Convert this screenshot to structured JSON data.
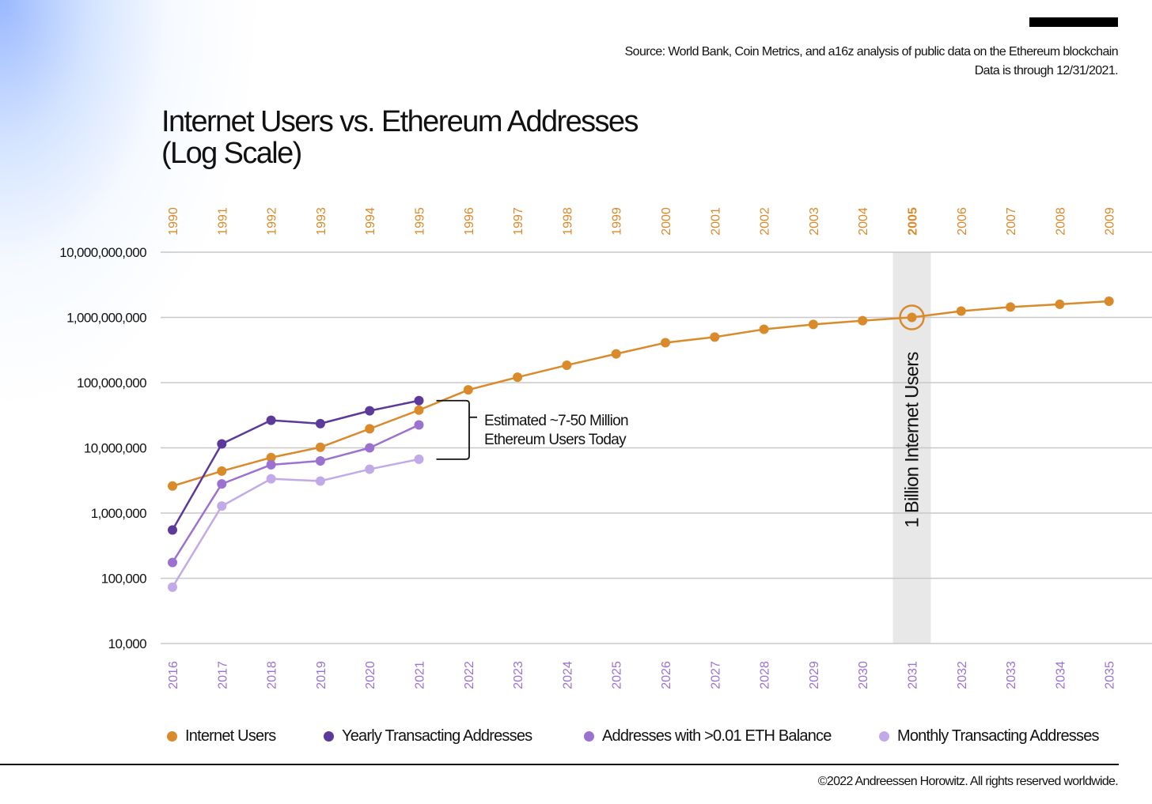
{
  "source": {
    "line1": "Source: World Bank, Coin Metrics, and a16z analysis of public data on the Ethereum blockchain",
    "line2": "Data is through 12/31/2021."
  },
  "title": {
    "line1": "Internet Users vs. Ethereum Addresses",
    "line2": "(Log Scale)"
  },
  "footer": {
    "copyright": "©2022 Andreessen Horowitz. All rights reserved worldwide."
  },
  "colors": {
    "internet": "#D98A2B",
    "yearly": "#5B3A99",
    "balance": "#9B72D0",
    "monthly": "#C2AAE8",
    "grid": "#c8c8c8",
    "highlight_band": "#e8e8e8"
  },
  "chart_data": {
    "type": "line",
    "title": "Internet Users vs. Ethereum Addresses (Log Scale)",
    "yscale": "log",
    "ylim": [
      10000,
      10000000000
    ],
    "yticks": [
      10000,
      100000,
      1000000,
      10000000,
      100000000,
      1000000000,
      10000000000
    ],
    "ytick_labels": [
      "10,000",
      "100,000",
      "1,000,000",
      "10,000,000",
      "100,000,000",
      "1,000,000,000",
      "10,000,000,000"
    ],
    "top_axis_label_note": "Internet year",
    "top_categories": [
      "1990",
      "1991",
      "1992",
      "1993",
      "1994",
      "1995",
      "1996",
      "1997",
      "1998",
      "1999",
      "2000",
      "2001",
      "2002",
      "2003",
      "2004",
      "2005",
      "2006",
      "2007",
      "2008",
      "2009"
    ],
    "bottom_categories": [
      "2016",
      "2017",
      "2018",
      "2019",
      "2020",
      "2021",
      "2022",
      "2023",
      "2024",
      "2025",
      "2026",
      "2027",
      "2028",
      "2029",
      "2030",
      "2031",
      "2032",
      "2033",
      "2034",
      "2035"
    ],
    "highlight_index": 15,
    "series": [
      {
        "name": "Internet Users",
        "color_key": "internet",
        "values": [
          2600000,
          4400000,
          7100000,
          10200000,
          19600000,
          37900000,
          77400000,
          121000000,
          185000000,
          276000000,
          409000000,
          499000000,
          657000000,
          780000000,
          892000000,
          1000000000,
          1250000000,
          1440000000,
          1590000000,
          1770000000
        ]
      },
      {
        "name": "Yearly Transacting Addresses",
        "color_key": "yearly",
        "values": [
          550000,
          11500000,
          26500000,
          23500000,
          37000000,
          53000000
        ]
      },
      {
        "name": "Addresses with >0.01 ETH Balance",
        "color_key": "balance",
        "values": [
          175000,
          2800000,
          5500000,
          6300000,
          10000000,
          22500000
        ]
      },
      {
        "name": "Monthly Transacting Addresses",
        "color_key": "monthly",
        "values": [
          73000,
          1280000,
          3350000,
          3100000,
          4700000,
          6700000
        ]
      }
    ],
    "annotations": {
      "bracket_line1": "Estimated ~7-50 Million",
      "bracket_line2": "Ethereum Users Today",
      "bracket_range": [
        6700000,
        53000000
      ],
      "vertical_label": "1 Billion Internet Users",
      "vertical_label_value": 1000000000
    },
    "legend_position": "bottom"
  }
}
